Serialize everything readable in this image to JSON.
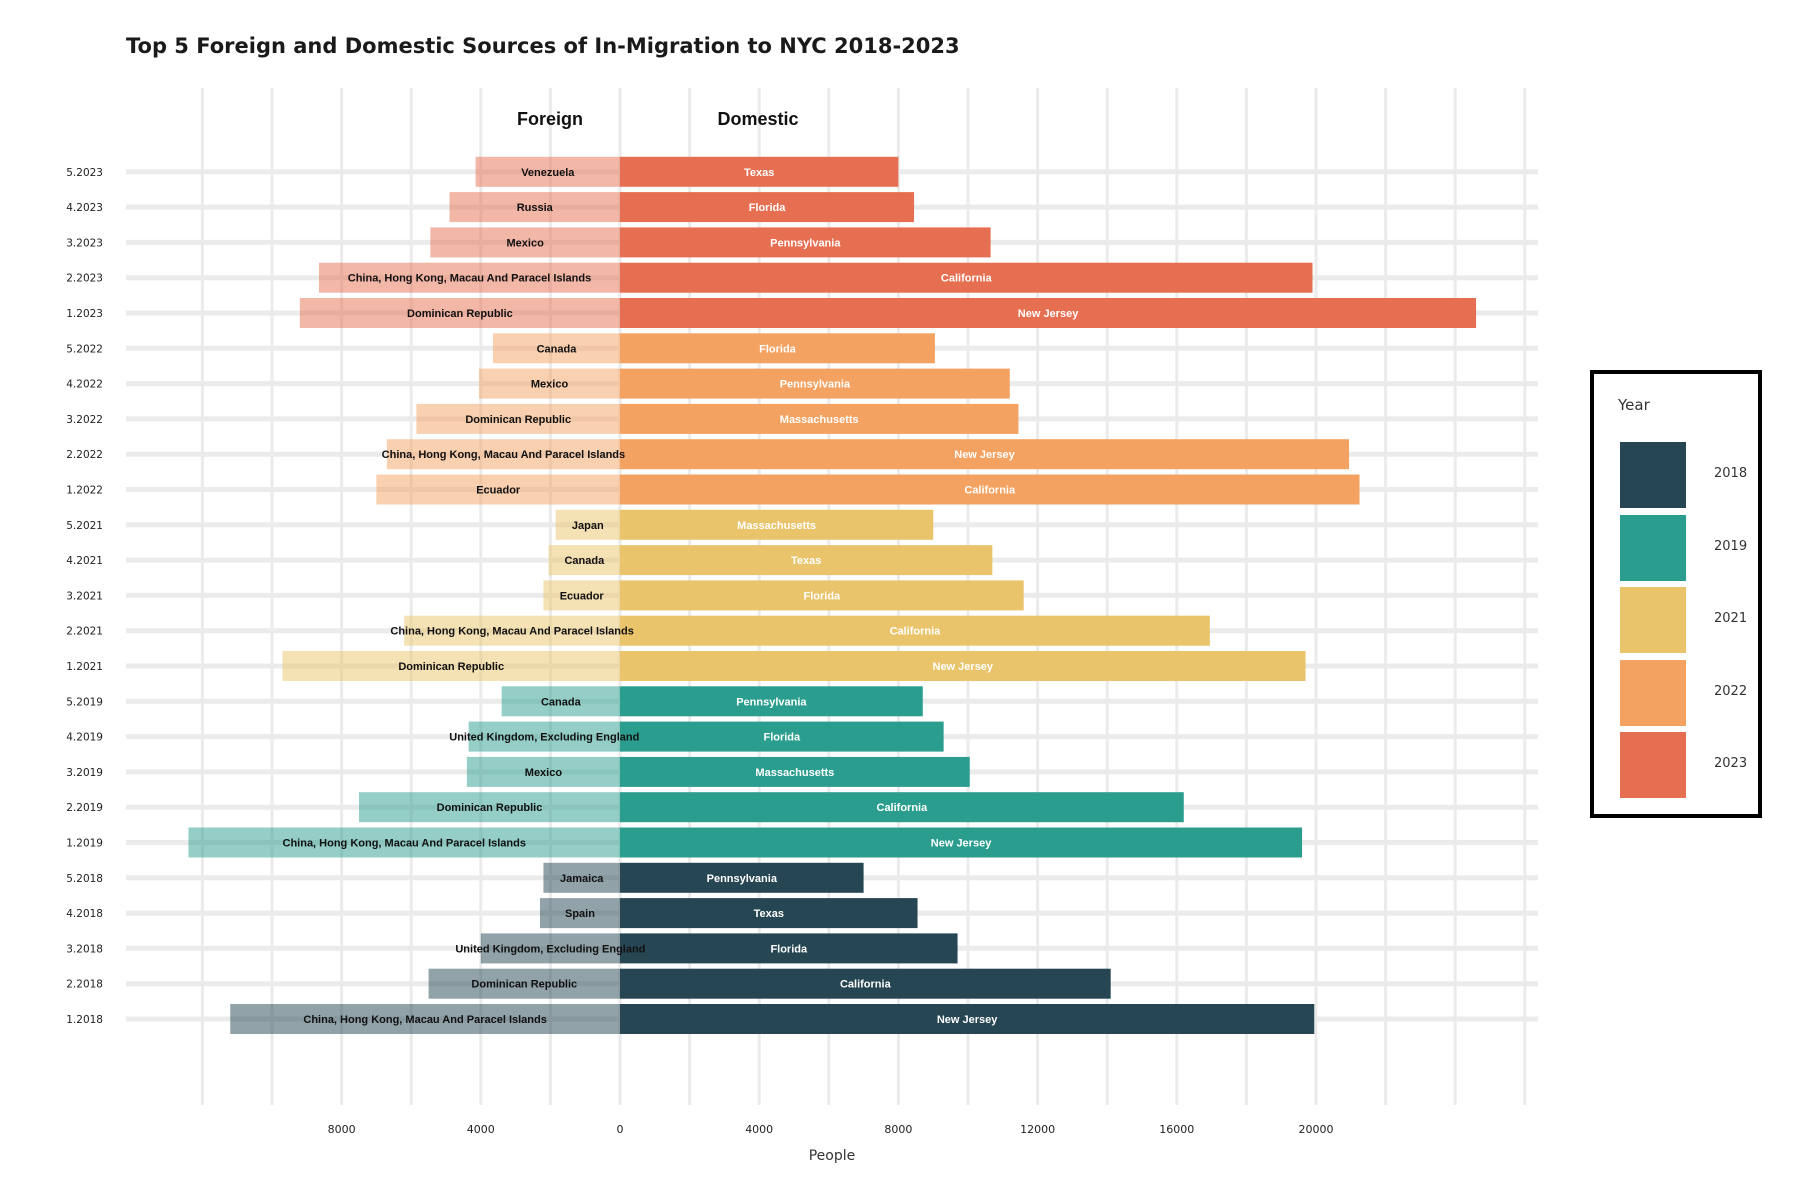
{
  "title": "Top 5 Foreign and Domestic Sources of In-Migration to NYC 2018-2023",
  "chart_data": {
    "type": "bar",
    "orientation": "horizontal-diverging",
    "title": "Top 5 Foreign and Domestic Sources of In-Migration to NYC 2018-2023",
    "xlabel": "People",
    "ylabel": "",
    "panel_labels": {
      "left": "Foreign",
      "right": "Domestic"
    },
    "xlim": [
      -14000,
      26500
    ],
    "x_ticks": [
      {
        "value": -8000,
        "label": "8000"
      },
      {
        "value": -4000,
        "label": "4000"
      },
      {
        "value": 0,
        "label": "0"
      },
      {
        "value": 4000,
        "label": "4000"
      },
      {
        "value": 8000,
        "label": "8000"
      },
      {
        "value": 12000,
        "label": "12000"
      },
      {
        "value": 16000,
        "label": "16000"
      },
      {
        "value": 20000,
        "label": "20000"
      }
    ],
    "grid": true,
    "legend": {
      "title": "Year",
      "position": "right",
      "items": [
        {
          "label": "2018",
          "color": "#264653"
        },
        {
          "label": "2019",
          "color": "#2a9d8f"
        },
        {
          "label": "2021",
          "color": "#e9c46a"
        },
        {
          "label": "2022",
          "color": "#f4a261"
        },
        {
          "label": "2023",
          "color": "#e76f51"
        }
      ]
    },
    "rows": [
      {
        "category": "1.2018",
        "year": "2018",
        "foreign": "China, Hong Kong, Macau And Paracel Islands",
        "foreign_value": 11200,
        "domestic": "New Jersey",
        "domestic_value": 19950
      },
      {
        "category": "2.2018",
        "year": "2018",
        "foreign": "Dominican Republic",
        "foreign_value": 5500,
        "domestic": "California",
        "domestic_value": 14100
      },
      {
        "category": "3.2018",
        "year": "2018",
        "foreign": "United Kingdom, Excluding England",
        "foreign_value": 4000,
        "domestic": "Florida",
        "domestic_value": 9700
      },
      {
        "category": "4.2018",
        "year": "2018",
        "foreign": "Spain",
        "foreign_value": 2300,
        "domestic": "Texas",
        "domestic_value": 8550
      },
      {
        "category": "5.2018",
        "year": "2018",
        "foreign": "Jamaica",
        "foreign_value": 2200,
        "domestic": "Pennsylvania",
        "domestic_value": 7000
      },
      {
        "category": "1.2019",
        "year": "2019",
        "foreign": "China, Hong Kong, Macau And Paracel Islands",
        "foreign_value": 12400,
        "domestic": "New Jersey",
        "domestic_value": 19600
      },
      {
        "category": "2.2019",
        "year": "2019",
        "foreign": "Dominican Republic",
        "foreign_value": 7500,
        "domestic": "California",
        "domestic_value": 16200
      },
      {
        "category": "3.2019",
        "year": "2019",
        "foreign": "Mexico",
        "foreign_value": 4400,
        "domestic": "Massachusetts",
        "domestic_value": 10050
      },
      {
        "category": "4.2019",
        "year": "2019",
        "foreign": "United Kingdom, Excluding England",
        "foreign_value": 4350,
        "domestic": "Florida",
        "domestic_value": 9300
      },
      {
        "category": "5.2019",
        "year": "2019",
        "foreign": "Canada",
        "foreign_value": 3400,
        "domestic": "Pennsylvania",
        "domestic_value": 8700
      },
      {
        "category": "1.2021",
        "year": "2021",
        "foreign": "Dominican Republic",
        "foreign_value": 9700,
        "domestic": "New Jersey",
        "domestic_value": 19700
      },
      {
        "category": "2.2021",
        "year": "2021",
        "foreign": "China, Hong Kong, Macau And Paracel Islands",
        "foreign_value": 6200,
        "domestic": "California",
        "domestic_value": 16950
      },
      {
        "category": "3.2021",
        "year": "2021",
        "foreign": "Ecuador",
        "foreign_value": 2200,
        "domestic": "Florida",
        "domestic_value": 11600
      },
      {
        "category": "4.2021",
        "year": "2021",
        "foreign": "Canada",
        "foreign_value": 2050,
        "domestic": "Texas",
        "domestic_value": 10700
      },
      {
        "category": "5.2021",
        "year": "2021",
        "foreign": "Japan",
        "foreign_value": 1850,
        "domestic": "Massachusetts",
        "domestic_value": 9000
      },
      {
        "category": "1.2022",
        "year": "2022",
        "foreign": "Ecuador",
        "foreign_value": 7000,
        "domestic": "California",
        "domestic_value": 21250
      },
      {
        "category": "2.2022",
        "year": "2022",
        "foreign": "China, Hong Kong, Macau And Paracel Islands",
        "foreign_value": 6700,
        "domestic": "New Jersey",
        "domestic_value": 20950
      },
      {
        "category": "3.2022",
        "year": "2022",
        "foreign": "Dominican Republic",
        "foreign_value": 5850,
        "domestic": "Massachusetts",
        "domestic_value": 11450
      },
      {
        "category": "4.2022",
        "year": "2022",
        "foreign": "Mexico",
        "foreign_value": 4050,
        "domestic": "Pennsylvania",
        "domestic_value": 11200
      },
      {
        "category": "5.2022",
        "year": "2022",
        "foreign": "Canada",
        "foreign_value": 3650,
        "domestic": "Florida",
        "domestic_value": 9050
      },
      {
        "category": "1.2023",
        "year": "2023",
        "foreign": "Dominican Republic",
        "foreign_value": 9200,
        "domestic": "New Jersey",
        "domestic_value": 24600
      },
      {
        "category": "2.2023",
        "year": "2023",
        "foreign": "China, Hong Kong, Macau And Paracel Islands",
        "foreign_value": 8650,
        "domestic": "California",
        "domestic_value": 19900
      },
      {
        "category": "3.2023",
        "year": "2023",
        "foreign": "Mexico",
        "foreign_value": 5450,
        "domestic": "Pennsylvania",
        "domestic_value": 10650
      },
      {
        "category": "4.2023",
        "year": "2023",
        "foreign": "Russia",
        "foreign_value": 4900,
        "domestic": "Florida",
        "domestic_value": 8450
      },
      {
        "category": "5.2023",
        "year": "2023",
        "foreign": "Venezuela",
        "foreign_value": 4150,
        "domestic": "Texas",
        "domestic_value": 8000
      }
    ]
  }
}
